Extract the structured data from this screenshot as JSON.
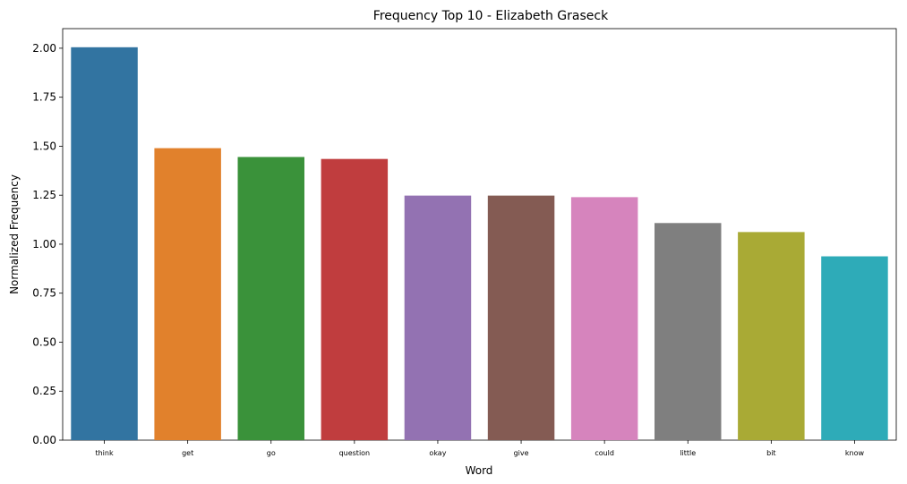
{
  "chart_data": {
    "type": "bar",
    "title": "Frequency Top 10 - Elizabeth Graseck",
    "xlabel": "Word",
    "ylabel": "Normalized Frequency",
    "categories": [
      "think",
      "get",
      "go",
      "question",
      "okay",
      "give",
      "could",
      "little",
      "bit",
      "know"
    ],
    "values": [
      2.005,
      1.49,
      1.445,
      1.435,
      1.248,
      1.248,
      1.24,
      1.108,
      1.062,
      0.938
    ],
    "ylim": [
      0,
      2.1
    ],
    "yticks": [
      "0.00",
      "0.25",
      "0.50",
      "0.75",
      "1.00",
      "1.25",
      "1.50",
      "1.75",
      "2.00"
    ],
    "colors": [
      "#3274a1",
      "#e1812c",
      "#3a923a",
      "#c03d3e",
      "#9372b2",
      "#845b53",
      "#d684bd",
      "#7f7f7f",
      "#a9aa35",
      "#2eabb8"
    ],
    "grid": false,
    "legend": "none"
  }
}
